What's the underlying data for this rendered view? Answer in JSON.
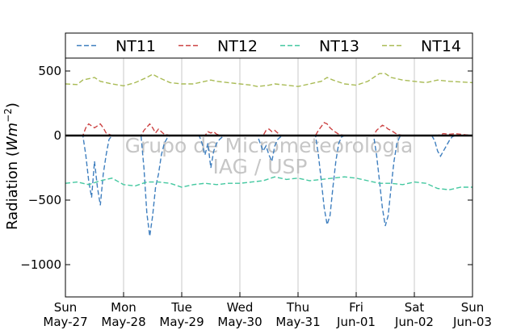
{
  "chart_data": {
    "type": "line",
    "ylabel": "Radiation (",
    "ylabel_unit": "Wm",
    "ylabel_exp": "−2",
    "ylabel_close": ")",
    "ylim": [
      -1250,
      600
    ],
    "yticks": [
      500,
      0,
      -500,
      -1000
    ],
    "ytick_labels": [
      "500",
      "0",
      "−500",
      "−1000"
    ],
    "xlim": [
      0,
      7
    ],
    "xticks": [
      {
        "x": 0,
        "day": "Sun",
        "date": "May-27"
      },
      {
        "x": 1,
        "day": "Mon",
        "date": "May-28"
      },
      {
        "x": 2,
        "day": "Tue",
        "date": "May-29"
      },
      {
        "x": 3,
        "day": "Wed",
        "date": "May-30"
      },
      {
        "x": 4,
        "day": "Thu",
        "date": "May-31"
      },
      {
        "x": 5,
        "day": "Fri",
        "date": "Jun-01"
      },
      {
        "x": 6,
        "day": "Sat",
        "date": "Jun-02"
      },
      {
        "x": 7,
        "day": "Sun",
        "date": "Jun-03"
      }
    ],
    "grid": "vertical",
    "legend_position": "top",
    "watermark": [
      "Grupo de Micrometeorologia",
      "IAG / USP"
    ],
    "series": [
      {
        "name": "NT11",
        "color": "#3f7fbf",
        "style": "dashed",
        "x": [
          0.0,
          0.3,
          0.35,
          0.4,
          0.45,
          0.5,
          0.55,
          0.6,
          0.65,
          0.7,
          0.75,
          0.8,
          1.0,
          1.3,
          1.35,
          1.4,
          1.45,
          1.5,
          1.55,
          1.6,
          1.65,
          1.7,
          1.75,
          1.8,
          2.0,
          2.3,
          2.35,
          2.4,
          2.45,
          2.5,
          2.55,
          2.6,
          2.65,
          2.7,
          2.75,
          2.8,
          3.0,
          3.3,
          3.35,
          3.4,
          3.45,
          3.5,
          3.55,
          3.6,
          3.65,
          3.7,
          3.75,
          3.8,
          4.0,
          4.3,
          4.35,
          4.4,
          4.45,
          4.5,
          4.55,
          4.6,
          4.65,
          4.7,
          4.75,
          4.8,
          5.0,
          5.3,
          5.35,
          5.4,
          5.45,
          5.5,
          5.55,
          5.6,
          5.65,
          5.7,
          5.75,
          5.8,
          6.0,
          6.3,
          6.35,
          6.4,
          6.45,
          6.5,
          6.55,
          6.6,
          6.65,
          6.7,
          6.75,
          6.8,
          7.0
        ],
        "y": [
          0,
          0,
          -150,
          -350,
          -480,
          -200,
          -400,
          -540,
          -300,
          -150,
          -30,
          0,
          0,
          0,
          -250,
          -600,
          -780,
          -620,
          -400,
          -300,
          -150,
          -60,
          -20,
          0,
          0,
          0,
          -60,
          -150,
          -60,
          -250,
          -120,
          -60,
          -30,
          -10,
          0,
          0,
          0,
          0,
          -60,
          -120,
          -80,
          -150,
          -200,
          -80,
          -30,
          -10,
          0,
          0,
          0,
          0,
          -150,
          -350,
          -560,
          -690,
          -620,
          -400,
          -200,
          -60,
          -10,
          0,
          0,
          0,
          -150,
          -350,
          -560,
          -700,
          -620,
          -400,
          -200,
          -60,
          -10,
          0,
          0,
          0,
          -40,
          -120,
          -160,
          -120,
          -80,
          -40,
          -10,
          0,
          0,
          0,
          0
        ]
      },
      {
        "name": "NT12",
        "color": "#cc4444",
        "style": "dashed",
        "x": [
          0.0,
          0.3,
          0.35,
          0.4,
          0.5,
          0.6,
          0.65,
          0.7,
          0.8,
          1.0,
          1.3,
          1.35,
          1.45,
          1.5,
          1.55,
          1.6,
          1.7,
          1.8,
          2.0,
          2.4,
          2.45,
          2.5,
          2.55,
          2.6,
          2.7,
          3.0,
          3.4,
          3.45,
          3.5,
          3.55,
          3.6,
          3.7,
          4.0,
          4.3,
          4.35,
          4.45,
          4.5,
          4.55,
          4.6,
          4.7,
          4.8,
          5.0,
          5.3,
          5.35,
          5.45,
          5.5,
          5.55,
          5.6,
          5.7,
          5.8,
          6.0,
          6.4,
          6.5,
          6.6,
          6.7,
          7.0
        ],
        "y": [
          0,
          0,
          60,
          90,
          60,
          90,
          60,
          20,
          0,
          0,
          0,
          40,
          90,
          60,
          20,
          50,
          10,
          0,
          0,
          0,
          30,
          20,
          30,
          10,
          0,
          0,
          0,
          40,
          50,
          30,
          40,
          0,
          0,
          0,
          40,
          100,
          90,
          60,
          40,
          10,
          0,
          0,
          0,
          40,
          80,
          70,
          50,
          40,
          10,
          0,
          0,
          0,
          15,
          10,
          15,
          0
        ]
      },
      {
        "name": "NT13",
        "color": "#44c8a0",
        "style": "dashed",
        "x": [
          0.0,
          0.2,
          0.4,
          0.6,
          0.8,
          1.0,
          1.2,
          1.4,
          1.6,
          1.8,
          2.0,
          2.2,
          2.4,
          2.6,
          2.8,
          3.0,
          3.2,
          3.4,
          3.6,
          3.8,
          4.0,
          4.2,
          4.4,
          4.6,
          4.8,
          5.0,
          5.2,
          5.4,
          5.6,
          5.8,
          6.0,
          6.2,
          6.4,
          6.6,
          6.8,
          7.0
        ],
        "y": [
          -370,
          -360,
          -380,
          -350,
          -330,
          -380,
          -390,
          -360,
          -360,
          -370,
          -400,
          -380,
          -370,
          -380,
          -370,
          -370,
          -360,
          -350,
          -320,
          -340,
          -330,
          -350,
          -340,
          -330,
          -320,
          -330,
          -350,
          -370,
          -370,
          -380,
          -360,
          -370,
          -410,
          -420,
          -400,
          -400
        ]
      },
      {
        "name": "NT14",
        "color": "#a9bb55",
        "style": "dashed",
        "x": [
          0.0,
          0.2,
          0.3,
          0.4,
          0.5,
          0.6,
          0.8,
          1.0,
          1.2,
          1.4,
          1.5,
          1.6,
          1.8,
          2.0,
          2.2,
          2.4,
          2.5,
          2.6,
          2.8,
          3.0,
          3.2,
          3.3,
          3.5,
          3.6,
          3.8,
          4.0,
          4.2,
          4.4,
          4.5,
          4.6,
          4.8,
          5.0,
          5.2,
          5.4,
          5.5,
          5.6,
          5.8,
          6.0,
          6.2,
          6.4,
          6.6,
          6.8,
          7.0
        ],
        "y": [
          400,
          395,
          430,
          440,
          450,
          420,
          400,
          385,
          410,
          450,
          475,
          450,
          410,
          400,
          400,
          420,
          430,
          420,
          410,
          400,
          390,
          380,
          390,
          400,
          390,
          380,
          400,
          420,
          450,
          430,
          400,
          390,
          420,
          480,
          480,
          450,
          430,
          420,
          410,
          430,
          420,
          415,
          410
        ]
      }
    ]
  }
}
